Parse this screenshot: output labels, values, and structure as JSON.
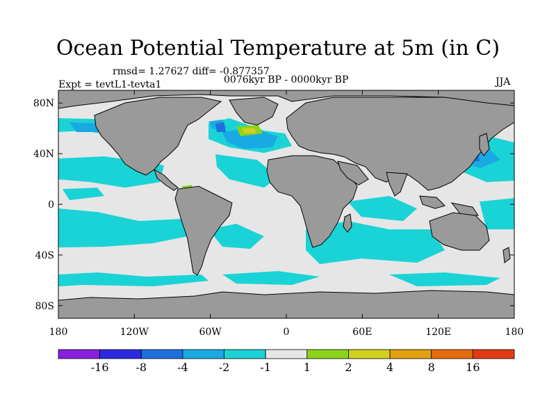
{
  "title": "Ocean Potential Temperature at 5m (in C)",
  "stats": "rmsd= 1.27627 diff= -0.877357",
  "period": "0076kyr BP - 0000kyr BP",
  "experiment": "Expt = tevtL1-tevta1",
  "season": "JJA",
  "axes": {
    "x_ticks": [
      "180",
      "120W",
      "60W",
      "0",
      "60E",
      "120E",
      "180"
    ],
    "y_ticks": [
      "80N",
      "40N",
      "0",
      "40S",
      "80S"
    ]
  },
  "colorbar": {
    "labels": [
      "-16",
      "-8",
      "-4",
      "-2",
      "-1",
      "1",
      "2",
      "4",
      "8",
      "16"
    ],
    "colors": [
      "#8a1ee0",
      "#2a2ae0",
      "#1f6fdf",
      "#19a9e3",
      "#1ad3d6",
      "#e6e6e6",
      "#8ad41a",
      "#d2d01e",
      "#e3a20d",
      "#e56a0c",
      "#e23a14"
    ]
  },
  "map_colors": {
    "land": "#9a9a9a",
    "near_zero": "#e6e6e6",
    "minus_1_to_2": "#1ad3d6",
    "minus_2_to_4": "#19a9e3",
    "minus_4_to_8": "#1f6fdf",
    "plus_1_to_2": "#8ad41a",
    "plus_2_to_4": "#d2d01e"
  }
}
